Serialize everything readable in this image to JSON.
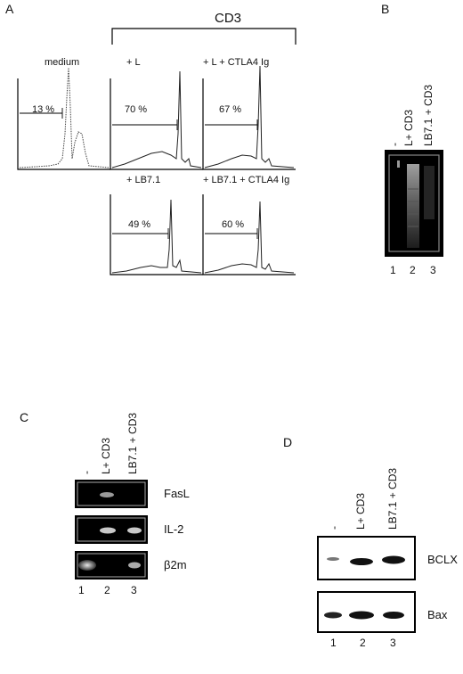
{
  "panels": {
    "a": {
      "letter": "A",
      "group_label": "CD3",
      "histograms": [
        {
          "label": "medium",
          "percent": "13 %"
        },
        {
          "label": "+ L",
          "percent": "70 %"
        },
        {
          "label": "+ L + CTLA4 Ig",
          "percent": "67 %"
        },
        {
          "label": "+ LB7.1",
          "percent": "49 %"
        },
        {
          "label": "+ LB7.1 + CTLA4 Ig",
          "percent": "60 %"
        }
      ]
    },
    "b": {
      "letter": "B",
      "lane_headers": [
        "-",
        "L+ CD3",
        "LB7.1 + CD3"
      ],
      "lane_numbers": [
        "1",
        "2",
        "3"
      ]
    },
    "c": {
      "letter": "C",
      "lane_headers": [
        "-",
        "L+ CD3",
        "LB7.1 + CD3"
      ],
      "bands": [
        "FasL",
        "IL-2",
        "β2m"
      ],
      "lane_numbers": [
        "1",
        "2",
        "3"
      ]
    },
    "d": {
      "letter": "D",
      "lane_headers": [
        "-",
        "L+ CD3",
        "LB7.1 + CD3"
      ],
      "bands": [
        "BCLX",
        "Bax"
      ],
      "lane_numbers": [
        "1",
        "2",
        "3"
      ]
    }
  }
}
